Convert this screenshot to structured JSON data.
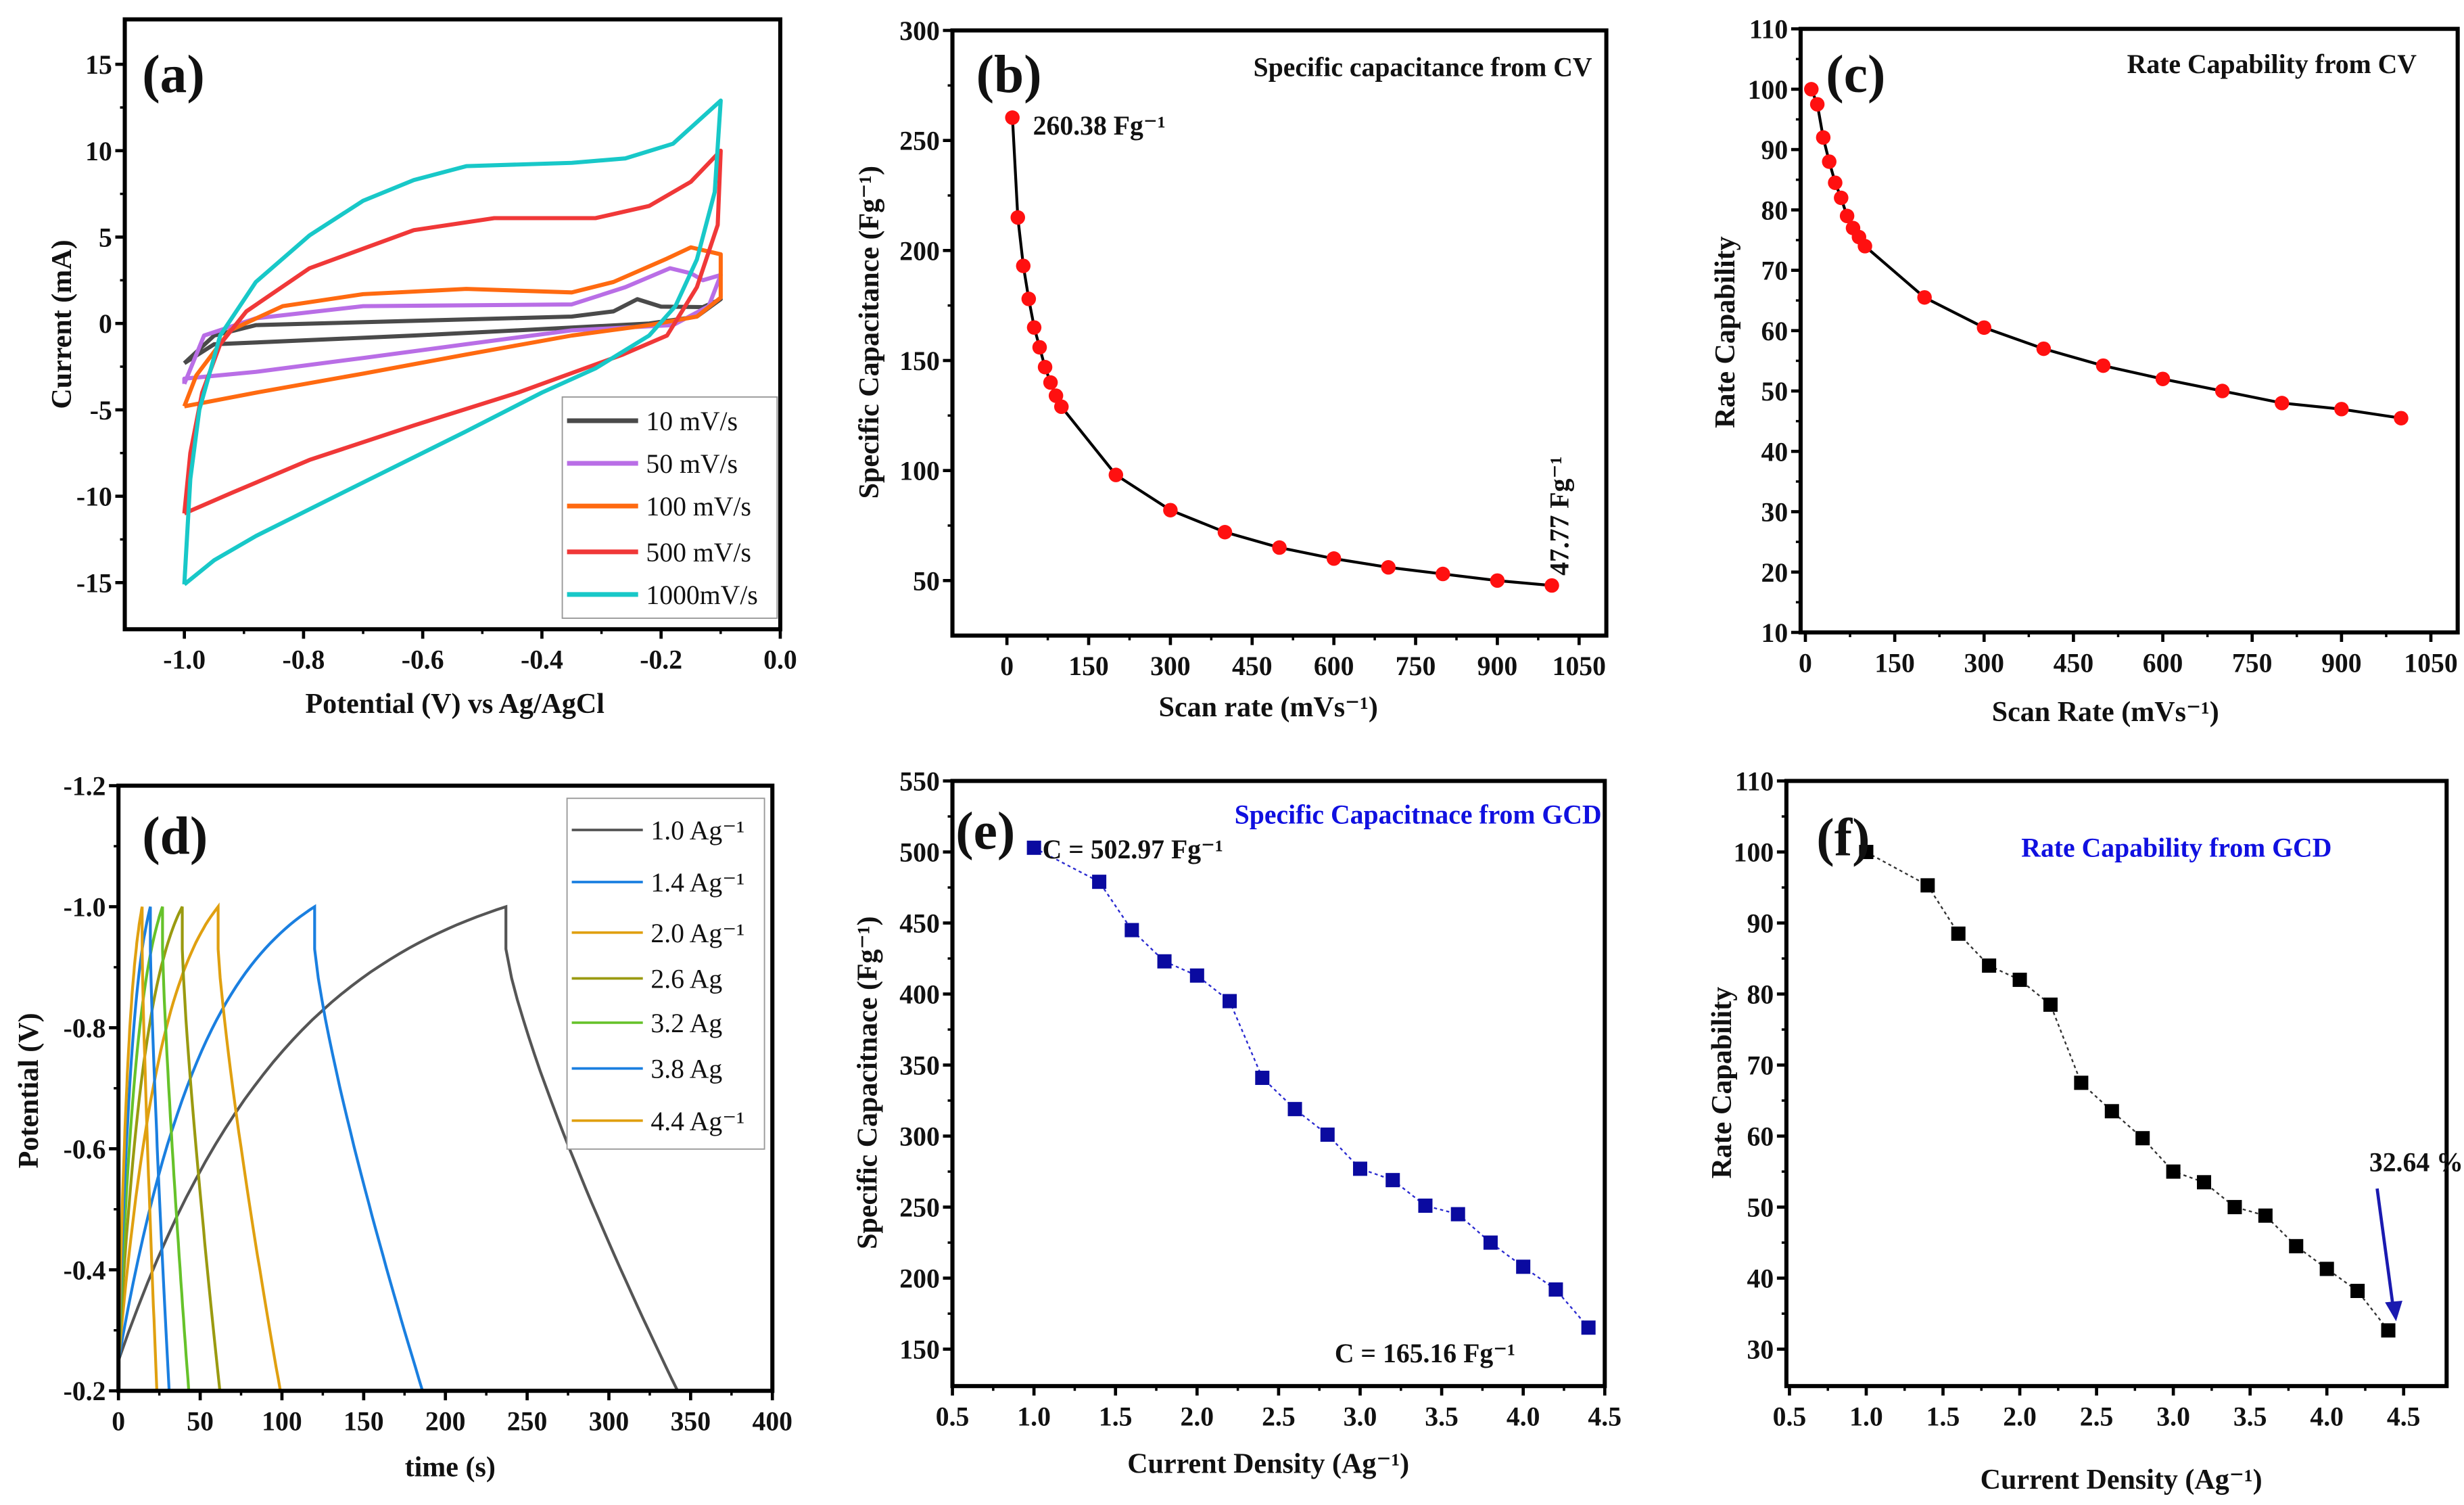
{
  "chart_data": [
    {
      "id": "a",
      "type": "line",
      "panel_label": "(a)",
      "xlabel": "Potential (V) vs Ag/AgCl",
      "ylabel": "Current (mA)",
      "xlim": [
        -1.1,
        0.0
      ],
      "ylim": [
        -17.7,
        17.6
      ],
      "xticks": [
        -1.0,
        -0.8,
        -0.6,
        -0.4,
        -0.2,
        0.0
      ],
      "xtick_labels": [
        "-1.0",
        "-0.8",
        "-0.6",
        "-0.4",
        "-0.2",
        "0.0"
      ],
      "yticks": [
        -15,
        -10,
        -5,
        0,
        5,
        10,
        15
      ],
      "ytick_labels": [
        "-15",
        "-10",
        "-5",
        "0",
        "5",
        "10",
        "15"
      ],
      "legend_placement": "bottom-right",
      "series": [
        {
          "name": "10 mV/s",
          "color": "#4a4a4a",
          "points": [
            [
              -1.0,
              -2.3
            ],
            [
              -0.95,
              -0.7
            ],
            [
              -0.88,
              -0.1
            ],
            [
              -0.615,
              0.15
            ],
            [
              -0.35,
              0.4
            ],
            [
              -0.28,
              0.7
            ],
            [
              -0.24,
              1.4
            ],
            [
              -0.2,
              0.97
            ],
            [
              -0.13,
              0.95
            ],
            [
              -0.1,
              1.4
            ],
            [
              -0.14,
              0.4
            ],
            [
              -0.22,
              0.0
            ],
            [
              -0.44,
              -0.4
            ],
            [
              -0.615,
              -0.7
            ],
            [
              -0.88,
              -1.1
            ],
            [
              -0.95,
              -1.2
            ],
            [
              -1.0,
              -2.3
            ]
          ]
        },
        {
          "name": "50 mV/s",
          "color": "#b96ee6",
          "points": [
            [
              -1.0,
              -3.5
            ],
            [
              -0.967,
              -0.7
            ],
            [
              -0.88,
              0.3
            ],
            [
              -0.7,
              1.0
            ],
            [
              -0.35,
              1.1
            ],
            [
              -0.26,
              2.1
            ],
            [
              -0.185,
              3.2
            ],
            [
              -0.15,
              2.9
            ],
            [
              -0.13,
              2.5
            ],
            [
              -0.1,
              2.8
            ],
            [
              -0.12,
              1.0
            ],
            [
              -0.18,
              -0.1
            ],
            [
              -0.35,
              -0.4
            ],
            [
              -0.527,
              -1.2
            ],
            [
              -0.7,
              -2.0
            ],
            [
              -0.88,
              -2.8
            ],
            [
              -1.0,
              -3.2
            ],
            [
              -1.0,
              -3.5
            ]
          ]
        },
        {
          "name": "100 mV/s",
          "color": "#ff6a10",
          "points": [
            [
              -1.0,
              -4.8
            ],
            [
              -0.98,
              -3.0
            ],
            [
              -0.923,
              -0.4
            ],
            [
              -0.835,
              1.0
            ],
            [
              -0.7,
              1.7
            ],
            [
              -0.527,
              2.0
            ],
            [
              -0.35,
              1.8
            ],
            [
              -0.28,
              2.4
            ],
            [
              -0.19,
              3.75
            ],
            [
              -0.15,
              4.4
            ],
            [
              -0.1,
              4.0
            ],
            [
              -0.1,
              1.5
            ],
            [
              -0.14,
              0.4
            ],
            [
              -0.22,
              -0.1
            ],
            [
              -0.35,
              -0.7
            ],
            [
              -0.527,
              -1.8
            ],
            [
              -0.7,
              -2.9
            ],
            [
              -0.879,
              -4.0
            ],
            [
              -1.0,
              -4.8
            ]
          ]
        },
        {
          "name": "500 mV/s",
          "color": "#f03838",
          "points": [
            [
              -1.0,
              -11.0
            ],
            [
              -0.99,
              -7.5
            ],
            [
              -0.97,
              -4.0
            ],
            [
              -0.94,
              -1.2
            ],
            [
              -0.896,
              0.7
            ],
            [
              -0.79,
              3.2
            ],
            [
              -0.615,
              5.4
            ],
            [
              -0.48,
              6.1
            ],
            [
              -0.31,
              6.1
            ],
            [
              -0.22,
              6.8
            ],
            [
              -0.15,
              8.2
            ],
            [
              -0.1,
              10.0
            ],
            [
              -0.105,
              5.7
            ],
            [
              -0.14,
              2.1
            ],
            [
              -0.19,
              -0.7
            ],
            [
              -0.264,
              -1.8
            ],
            [
              -0.44,
              -4.0
            ],
            [
              -0.615,
              -5.9
            ],
            [
              -0.79,
              -7.9
            ],
            [
              -0.92,
              -9.8
            ],
            [
              -1.0,
              -11.0
            ]
          ]
        },
        {
          "name": "1000mV/s",
          "color": "#18c8c8",
          "points": [
            [
              -1.0,
              -15.1
            ],
            [
              -0.99,
              -9.0
            ],
            [
              -0.975,
              -5.0
            ],
            [
              -0.94,
              -0.7
            ],
            [
              -0.88,
              2.4
            ],
            [
              -0.79,
              5.1
            ],
            [
              -0.7,
              7.1
            ],
            [
              -0.615,
              8.3
            ],
            [
              -0.527,
              9.1
            ],
            [
              -0.35,
              9.3
            ],
            [
              -0.26,
              9.55
            ],
            [
              -0.18,
              10.4
            ],
            [
              -0.1,
              12.9
            ],
            [
              -0.11,
              7.6
            ],
            [
              -0.14,
              3.7
            ],
            [
              -0.176,
              1.0
            ],
            [
              -0.22,
              -0.7
            ],
            [
              -0.31,
              -2.6
            ],
            [
              -0.4,
              -4.0
            ],
            [
              -0.53,
              -6.3
            ],
            [
              -0.7,
              -9.2
            ],
            [
              -0.88,
              -12.3
            ],
            [
              -0.95,
              -13.7
            ],
            [
              -1.0,
              -15.1
            ]
          ]
        }
      ]
    },
    {
      "id": "b",
      "type": "line",
      "panel_label": "(b)",
      "title": "Specific capacitance from CV",
      "xlabel": "Scan rate (mVs⁻¹)",
      "ylabel": "Specific Capacitance (Fg⁻¹)",
      "xlim": [
        -100,
        1100
      ],
      "ylim": [
        25,
        300
      ],
      "xticks": [
        0,
        150,
        300,
        450,
        600,
        750,
        900,
        1050
      ],
      "xtick_labels": [
        "0",
        "150",
        "300",
        "450",
        "600",
        "750",
        "900",
        "1050"
      ],
      "yticks": [
        50,
        100,
        150,
        200,
        250,
        300
      ],
      "ytick_labels": [
        "50",
        "100",
        "150",
        "200",
        "250",
        "300"
      ],
      "annotations": [
        "260.38 Fg⁻¹",
        "47.77 Fg⁻¹"
      ],
      "marker": "circle",
      "marker_color": "#ff1010",
      "line_color": "#000000",
      "x": [
        10,
        20,
        30,
        40,
        50,
        60,
        70,
        80,
        90,
        100,
        200,
        300,
        400,
        500,
        600,
        700,
        800,
        900,
        1000
      ],
      "y": [
        260.38,
        215,
        193,
        178,
        165,
        156,
        147,
        140,
        134,
        129,
        98,
        82,
        72,
        65,
        60,
        56,
        53,
        50,
        47.77
      ]
    },
    {
      "id": "c",
      "type": "line",
      "panel_label": "(c)",
      "title": "Rate Capability from CV",
      "xlabel": "Scan Rate (mVs⁻¹)",
      "ylabel": "Rate Capability",
      "xlim": [
        -8,
        1095
      ],
      "ylim": [
        10,
        110
      ],
      "xticks": [
        0,
        150,
        300,
        450,
        600,
        750,
        900,
        1050
      ],
      "xtick_labels": [
        "0",
        "150",
        "300",
        "450",
        "600",
        "750",
        "900",
        "1050"
      ],
      "yticks": [
        10,
        20,
        30,
        40,
        50,
        60,
        70,
        80,
        90,
        100,
        110
      ],
      "ytick_labels": [
        "10",
        "20",
        "30",
        "40",
        "50",
        "60",
        "70",
        "80",
        "90",
        "100",
        "110"
      ],
      "marker": "circle",
      "marker_color": "#ff1010",
      "line_color": "#000000",
      "x": [
        10,
        20,
        30,
        40,
        50,
        60,
        70,
        80,
        90,
        100,
        200,
        300,
        400,
        500,
        600,
        700,
        800,
        900,
        1000
      ],
      "y": [
        100,
        97.5,
        92,
        88,
        84.5,
        82,
        79,
        77,
        75.5,
        74,
        65.5,
        60.5,
        57,
        54.2,
        52,
        50,
        48,
        47,
        45.5
      ]
    },
    {
      "id": "d",
      "type": "line",
      "panel_label": "(d)",
      "xlabel": "time (s)",
      "ylabel": "Potential (V)",
      "xlim": [
        0,
        400
      ],
      "ylim": [
        -0.2,
        -1.2
      ],
      "xticks": [
        0,
        50,
        100,
        150,
        200,
        250,
        300,
        350,
        400
      ],
      "xtick_labels": [
        "0",
        "50",
        "100",
        "150",
        "200",
        "250",
        "300",
        "350",
        "400"
      ],
      "yticks": [
        -0.2,
        -0.4,
        -0.6,
        -0.8,
        -1.0,
        -1.2
      ],
      "ytick_labels": [
        "-0.2",
        "-0.4",
        "-0.6",
        "-0.8",
        "-1.0",
        "-1.2"
      ],
      "legend_placement": "top-right",
      "series": [
        {
          "name": "1.0 Ag⁻¹",
          "color": "#555555",
          "charge_end_s": 237,
          "discharge_end_s": 342
        },
        {
          "name": "1.4 Ag⁻¹",
          "color": "#1a7fe0",
          "charge_end_s": 120,
          "discharge_end_s": 186
        },
        {
          "name": "2.0 Ag⁻¹",
          "color": "#e0a010",
          "charge_end_s": 61,
          "discharge_end_s": 99
        },
        {
          "name": "2.6 Ag",
          "color": "#9a9a10",
          "charge_end_s": 39,
          "discharge_end_s": 62
        },
        {
          "name": "3.2 Ag",
          "color": "#66c22a",
          "charge_end_s": 27,
          "discharge_end_s": 43
        },
        {
          "name": "3.8 Ag",
          "color": "#1a7fe0",
          "charge_end_s": 19.5,
          "discharge_end_s": 31
        },
        {
          "name": "4.4 Ag⁻¹",
          "color": "#e0a010",
          "charge_end_s": 14.5,
          "discharge_end_s": 23.5
        }
      ]
    },
    {
      "id": "e",
      "type": "line",
      "panel_label": "(e)",
      "title": "Specific Capacitnace from GCD",
      "xlabel": "Current Density (Ag⁻¹)",
      "ylabel": "Specific Capacitnace (Fg⁻¹)",
      "xlim": [
        0.5,
        4.5
      ],
      "ylim": [
        124,
        550
      ],
      "xticks": [
        0.5,
        1.0,
        1.5,
        2.0,
        2.5,
        3.0,
        3.5,
        4.0,
        4.5
      ],
      "xtick_labels": [
        "0.5",
        "1.0",
        "1.5",
        "2.0",
        "2.5",
        "3.0",
        "3.5",
        "4.0",
        "4.5"
      ],
      "yticks": [
        150,
        200,
        250,
        300,
        350,
        400,
        450,
        500,
        550
      ],
      "ytick_labels": [
        "150",
        "200",
        "250",
        "300",
        "350",
        "400",
        "450",
        "500",
        "550"
      ],
      "annotations": [
        "C = 502.97 Fg⁻¹",
        "C = 165.16 Fg⁻¹"
      ],
      "marker": "square",
      "marker_color": "#0a0aa0",
      "line_color": "#2a2ad0",
      "x": [
        1.0,
        1.4,
        1.6,
        1.8,
        2.0,
        2.2,
        2.4,
        2.6,
        2.8,
        3.0,
        3.2,
        3.4,
        3.6,
        3.8,
        4.0,
        4.2,
        4.4
      ],
      "y": [
        502.97,
        479,
        445,
        423,
        413,
        395,
        341,
        319,
        301,
        277,
        269,
        251,
        245,
        225,
        208,
        192,
        165.16
      ]
    },
    {
      "id": "f",
      "type": "line",
      "panel_label": "(f)",
      "title": "Rate Capability from GCD",
      "xlabel": "Current Density (Ag⁻¹)",
      "ylabel": "Rate Capability",
      "xlim": [
        0.48,
        4.78
      ],
      "ylim": [
        24.8,
        110
      ],
      "xticks": [
        0.5,
        1.0,
        1.5,
        2.0,
        2.5,
        3.0,
        3.5,
        4.0,
        4.5
      ],
      "xtick_labels": [
        "0.5",
        "1.0",
        "1.5",
        "2.0",
        "2.5",
        "3.0",
        "3.5",
        "4.0",
        "4.5"
      ],
      "yticks": [
        30,
        40,
        50,
        60,
        70,
        80,
        90,
        100,
        110
      ],
      "ytick_labels": [
        "30",
        "40",
        "50",
        "60",
        "70",
        "80",
        "90",
        "100",
        "110"
      ],
      "annotations": [
        "32.64 %"
      ],
      "marker": "square",
      "marker_color": "#000000",
      "line_color": "#333333",
      "x": [
        1.0,
        1.4,
        1.6,
        1.8,
        2.0,
        2.2,
        2.4,
        2.6,
        2.8,
        3.0,
        3.2,
        3.4,
        3.6,
        3.8,
        4.0,
        4.2,
        4.4
      ],
      "y": [
        100,
        95.3,
        88.5,
        84,
        82,
        78.5,
        67.5,
        63.5,
        59.7,
        55,
        53.5,
        50,
        48.8,
        44.5,
        41.3,
        38.2,
        32.64
      ]
    }
  ]
}
